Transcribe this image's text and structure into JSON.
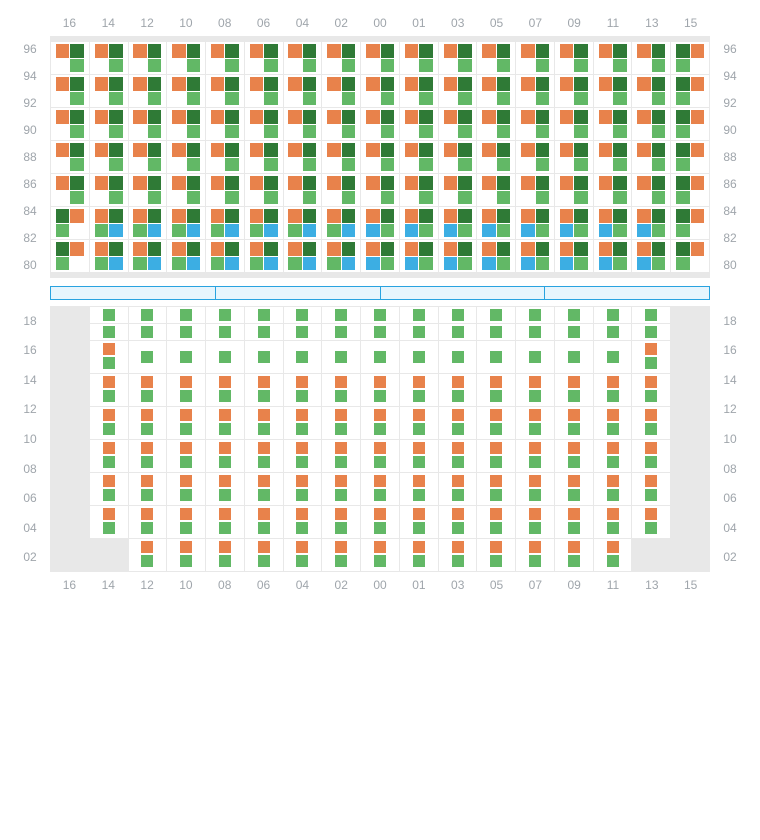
{
  "colors": {
    "orange": "#e8824b",
    "green": "#62b866",
    "darkgreen": "#2f7a36",
    "blue": "#3caee3",
    "empty_bg": "#e8e8e8",
    "border": "#e8e8e8",
    "label": "#9fa5ab",
    "divider_border": "#29a3e0",
    "divider_fill": "#e7f5fd"
  },
  "columns": [
    "16",
    "14",
    "12",
    "10",
    "08",
    "06",
    "04",
    "02",
    "00",
    "01",
    "03",
    "05",
    "07",
    "09",
    "11",
    "13",
    "15"
  ],
  "top": {
    "rows": [
      "96",
      "94",
      "92",
      "90",
      "88",
      "86",
      "84",
      "82",
      "80"
    ],
    "patterns": {
      "A": [
        "orange",
        "darkgreen",
        null,
        "green"
      ],
      "B": [
        "orange",
        "darkgreen",
        "green",
        "blue"
      ],
      "C": [
        "orange",
        "darkgreen",
        "blue",
        "green"
      ],
      "AL": [
        "darkgreen",
        "orange",
        "green",
        null
      ],
      "BL": [
        "darkgreen",
        "orange",
        "blue",
        "green"
      ],
      "CL": [
        "darkgreen",
        "orange",
        "green",
        "blue"
      ]
    },
    "cells": [
      [
        "E",
        "E",
        "E",
        "E",
        "E",
        "E",
        "E",
        "E",
        "E",
        "E",
        "E",
        "E",
        "E",
        "E",
        "E",
        "E",
        "E"
      ],
      [
        "A",
        "A",
        "A",
        "A",
        "A",
        "A",
        "A",
        "A",
        "A",
        "A",
        "A",
        "A",
        "A",
        "A",
        "A",
        "A",
        "AL"
      ],
      [
        "A",
        "A",
        "A",
        "A",
        "A",
        "A",
        "A",
        "A",
        "A",
        "A",
        "A",
        "A",
        "A",
        "A",
        "A",
        "A",
        "AL"
      ],
      [
        "A",
        "A",
        "A",
        "A",
        "A",
        "A",
        "A",
        "A",
        "A",
        "A",
        "A",
        "A",
        "A",
        "A",
        "A",
        "A",
        "AL"
      ],
      [
        "A",
        "A",
        "A",
        "A",
        "A",
        "A",
        "A",
        "A",
        "A",
        "A",
        "A",
        "A",
        "A",
        "A",
        "A",
        "A",
        "AL"
      ],
      [
        "A",
        "A",
        "A",
        "A",
        "A",
        "A",
        "A",
        "A",
        "A",
        "A",
        "A",
        "A",
        "A",
        "A",
        "A",
        "A",
        "AL"
      ],
      [
        "AL",
        "B",
        "B",
        "B",
        "B",
        "B",
        "B",
        "B",
        "C",
        "C",
        "C",
        "C",
        "C",
        "C",
        "C",
        "C",
        "AL"
      ],
      [
        "AL",
        "B",
        "B",
        "B",
        "B",
        "B",
        "B",
        "B",
        "C",
        "C",
        "C",
        "C",
        "C",
        "C",
        "C",
        "C",
        "AL"
      ],
      [
        "E",
        "E",
        "E",
        "E",
        "E",
        "E",
        "E",
        "E",
        "E",
        "E",
        "E",
        "E",
        "E",
        "E",
        "E",
        "E",
        "E"
      ]
    ]
  },
  "divider_segments": 4,
  "bottom": {
    "rows": [
      "18",
      "16",
      "14",
      "12",
      "10",
      "08",
      "06",
      "04",
      "02"
    ],
    "patterns": {
      "G": [
        "green"
      ],
      "V": [
        "orange",
        "green"
      ],
      "V2": [
        "orange",
        "green"
      ]
    },
    "cells": [
      [
        "E",
        "G",
        "G",
        "G",
        "G",
        "G",
        "G",
        "G",
        "G",
        "G",
        "G",
        "G",
        "G",
        "G",
        "G",
        "G",
        "E"
      ],
      [
        "E",
        "G",
        "G",
        "G",
        "G",
        "G",
        "G",
        "G",
        "G",
        "G",
        "G",
        "G",
        "G",
        "G",
        "G",
        "G",
        "E"
      ],
      [
        "E",
        "V2",
        "G",
        "G",
        "G",
        "G",
        "G",
        "G",
        "G",
        "G",
        "G",
        "G",
        "G",
        "G",
        "G",
        "V2",
        "E"
      ],
      [
        "E",
        "V",
        "V",
        "V",
        "V",
        "V",
        "V",
        "V",
        "V",
        "V",
        "V",
        "V",
        "V",
        "V",
        "V",
        "V",
        "E"
      ],
      [
        "E",
        "V",
        "V",
        "V",
        "V",
        "V",
        "V",
        "V",
        "V",
        "V",
        "V",
        "V",
        "V",
        "V",
        "V",
        "V",
        "E"
      ],
      [
        "E",
        "V",
        "V",
        "V",
        "V",
        "V",
        "V",
        "V",
        "V",
        "V",
        "V",
        "V",
        "V",
        "V",
        "V",
        "V",
        "E"
      ],
      [
        "E",
        "V",
        "V",
        "V",
        "V",
        "V",
        "V",
        "V",
        "V",
        "V",
        "V",
        "V",
        "V",
        "V",
        "V",
        "V",
        "E"
      ],
      [
        "E",
        "V",
        "V",
        "V",
        "V",
        "V",
        "V",
        "V",
        "V",
        "V",
        "V",
        "V",
        "V",
        "V",
        "V",
        "V",
        "E"
      ],
      [
        "E",
        "E",
        "V",
        "V",
        "V",
        "V",
        "V",
        "V",
        "V",
        "V",
        "V",
        "V",
        "V",
        "V",
        "V",
        "E",
        "E"
      ]
    ]
  }
}
